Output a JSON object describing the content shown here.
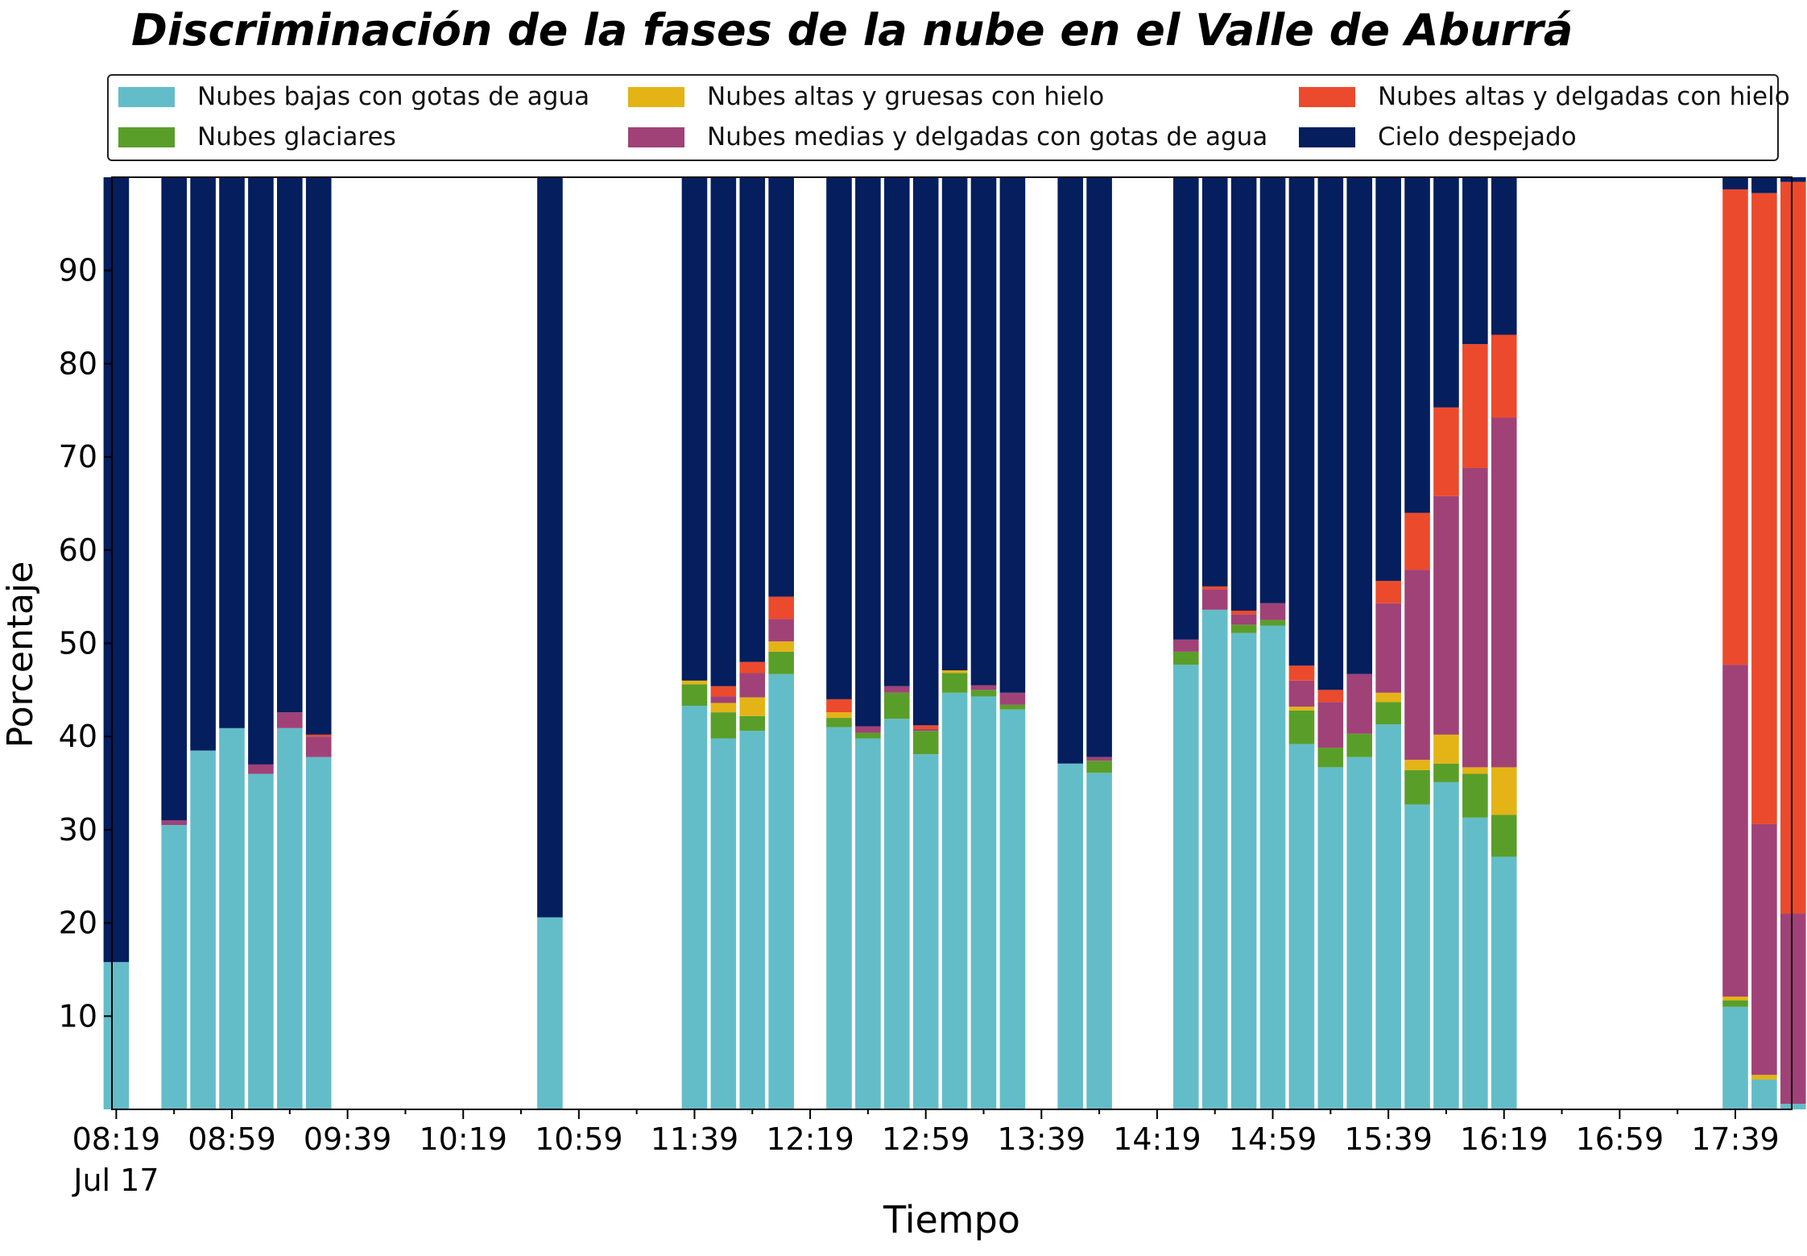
{
  "chart_data": {
    "type": "bar",
    "stacked": true,
    "title": "Discriminación de la fases de la nube en el Valle de Aburrá",
    "xlabel": "Tiempo",
    "ylabel": "Porcentaje",
    "ylim": [
      0,
      100
    ],
    "yticks": [
      10,
      20,
      30,
      40,
      50,
      60,
      70,
      80,
      90
    ],
    "grid": false,
    "legend_position": "top",
    "x_range_minutes": [
      -1.5,
      579.5
    ],
    "bar_interval_minutes": 10,
    "x_major_ticks": [
      {
        "label": "08:19",
        "sub": "Jul 17",
        "minute": 0
      },
      {
        "label": "08:59",
        "minute": 40
      },
      {
        "label": "09:39",
        "minute": 80
      },
      {
        "label": "10:19",
        "minute": 120
      },
      {
        "label": "10:59",
        "minute": 160
      },
      {
        "label": "11:39",
        "minute": 200
      },
      {
        "label": "12:19",
        "minute": 240
      },
      {
        "label": "12:59",
        "minute": 280
      },
      {
        "label": "13:39",
        "minute": 320
      },
      {
        "label": "14:19",
        "minute": 360
      },
      {
        "label": "14:59",
        "minute": 400
      },
      {
        "label": "15:39",
        "minute": 440
      },
      {
        "label": "16:19",
        "minute": 480
      },
      {
        "label": "16:59",
        "minute": 520
      },
      {
        "label": "17:39",
        "minute": 560
      }
    ],
    "series": [
      {
        "name": "Nubes bajas con gotas de agua",
        "color": "#63bdc9"
      },
      {
        "name": "Nubes glaciares",
        "color": "#5a9e2a"
      },
      {
        "name": "Nubes altas y gruesas con hielo",
        "color": "#e4b316"
      },
      {
        "name": "Nubes medias y delgadas con gotas de agua",
        "color": "#a04277"
      },
      {
        "name": "Nubes altas y delgadas con hielo",
        "color": "#ec4a2c"
      },
      {
        "name": "Cielo despejado",
        "color": "#041e5e"
      }
    ],
    "bars": [
      {
        "minute": 0,
        "values": [
          15.8,
          0,
          0,
          0,
          0,
          84.2
        ]
      },
      {
        "minute": 20,
        "values": [
          30.5,
          0,
          0,
          0.5,
          0,
          69.0
        ]
      },
      {
        "minute": 30,
        "values": [
          38.5,
          0,
          0,
          0,
          0,
          61.5
        ]
      },
      {
        "minute": 40,
        "values": [
          40.9,
          0,
          0,
          0,
          0,
          59.1
        ]
      },
      {
        "minute": 50,
        "values": [
          36.0,
          0,
          0,
          1.0,
          0,
          63.0
        ]
      },
      {
        "minute": 60,
        "values": [
          40.9,
          0,
          0,
          1.7,
          0,
          57.4
        ]
      },
      {
        "minute": 70,
        "values": [
          37.8,
          0,
          0,
          2.2,
          0.2,
          59.8
        ]
      },
      {
        "minute": 150,
        "values": [
          20.6,
          0,
          0,
          0,
          0,
          79.4
        ]
      },
      {
        "minute": 200,
        "values": [
          43.3,
          2.3,
          0.4,
          0,
          0,
          54.0
        ]
      },
      {
        "minute": 210,
        "values": [
          39.8,
          2.8,
          1.0,
          0.7,
          1.1,
          54.6
        ]
      },
      {
        "minute": 220,
        "values": [
          40.6,
          1.6,
          2.0,
          2.6,
          1.2,
          52.0
        ]
      },
      {
        "minute": 230,
        "values": [
          46.7,
          2.4,
          1.1,
          2.4,
          2.4,
          45.0
        ]
      },
      {
        "minute": 250,
        "values": [
          41.0,
          1.0,
          0.6,
          0,
          1.4,
          56.0
        ]
      },
      {
        "minute": 260,
        "values": [
          39.8,
          0.6,
          0,
          0.7,
          0,
          58.9
        ]
      },
      {
        "minute": 270,
        "values": [
          41.9,
          2.8,
          0,
          0.7,
          0,
          54.6
        ]
      },
      {
        "minute": 280,
        "values": [
          38.1,
          2.5,
          0,
          0.2,
          0.4,
          58.8
        ]
      },
      {
        "minute": 290,
        "values": [
          44.7,
          2.1,
          0.3,
          0,
          0,
          52.9
        ]
      },
      {
        "minute": 300,
        "values": [
          44.3,
          0.7,
          0,
          0.5,
          0,
          54.5
        ]
      },
      {
        "minute": 310,
        "values": [
          42.9,
          0.5,
          0,
          1.3,
          0,
          55.3
        ]
      },
      {
        "minute": 330,
        "values": [
          37.1,
          0,
          0,
          0,
          0,
          62.9
        ]
      },
      {
        "minute": 340,
        "values": [
          36.1,
          1.3,
          0,
          0.4,
          0,
          62.2
        ]
      },
      {
        "minute": 370,
        "values": [
          47.7,
          1.4,
          0,
          1.3,
          0,
          49.6
        ]
      },
      {
        "minute": 380,
        "values": [
          53.6,
          0,
          0,
          2.2,
          0.3,
          43.9
        ]
      },
      {
        "minute": 390,
        "values": [
          51.1,
          0.9,
          0,
          1.1,
          0.4,
          46.5
        ]
      },
      {
        "minute": 400,
        "values": [
          51.9,
          0.6,
          0,
          1.8,
          0,
          45.7
        ]
      },
      {
        "minute": 410,
        "values": [
          39.2,
          3.6,
          0.4,
          2.8,
          1.6,
          52.4
        ]
      },
      {
        "minute": 420,
        "values": [
          36.7,
          2.1,
          0,
          4.9,
          1.3,
          55.0
        ]
      },
      {
        "minute": 430,
        "values": [
          37.8,
          2.5,
          0,
          6.4,
          0,
          53.3
        ]
      },
      {
        "minute": 440,
        "values": [
          41.3,
          2.4,
          1.0,
          9.6,
          2.4,
          43.3
        ]
      },
      {
        "minute": 450,
        "values": [
          32.7,
          3.7,
          1.1,
          20.4,
          6.1,
          36.0
        ]
      },
      {
        "minute": 460,
        "values": [
          35.1,
          2.0,
          3.1,
          25.6,
          9.5,
          24.7
        ]
      },
      {
        "minute": 470,
        "values": [
          31.3,
          4.7,
          0.7,
          32.1,
          13.3,
          17.9
        ]
      },
      {
        "minute": 480,
        "values": [
          27.1,
          4.5,
          5.1,
          37.5,
          8.9,
          16.9
        ]
      },
      {
        "minute": 560,
        "values": [
          11.0,
          0.7,
          0.4,
          35.6,
          51.0,
          1.3
        ]
      },
      {
        "minute": 570,
        "values": [
          3.2,
          0,
          0.5,
          26.9,
          67.7,
          1.7
        ]
      },
      {
        "minute": 580,
        "values": [
          0.6,
          0,
          0,
          20.4,
          78.5,
          0.5
        ]
      }
    ]
  }
}
